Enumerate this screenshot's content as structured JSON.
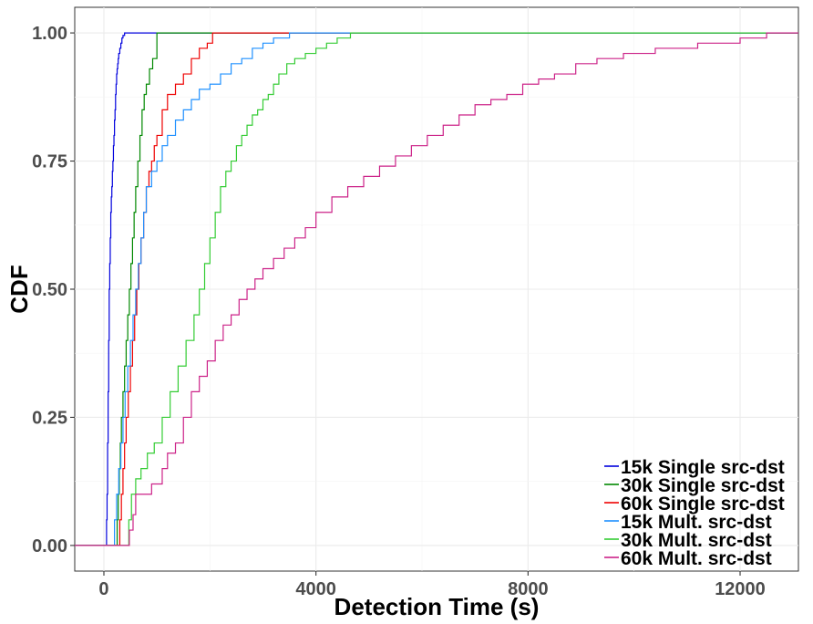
{
  "chart_data": {
    "type": "line",
    "step": true,
    "xlabel": "Detection Time (s)",
    "ylabel": "CDF",
    "xlim": [
      -550,
      13100
    ],
    "ylim": [
      -0.05,
      1.05
    ],
    "x_ticks": [
      0,
      4000,
      8000,
      12000
    ],
    "x_tick_labels": [
      "0",
      "4000",
      "8000",
      "12000"
    ],
    "y_ticks": [
      0,
      0.25,
      0.5,
      0.75,
      1.0
    ],
    "y_tick_labels": [
      "0.00",
      "0.25",
      "0.50",
      "0.75",
      "1.00"
    ],
    "grid": true,
    "legend_position": "bottom-right",
    "series": [
      {
        "name": "15k Single src-dst",
        "color": "#0000dd",
        "x": [
          -550,
          50,
          50,
          60,
          70,
          80,
          90,
          100,
          110,
          120,
          130,
          140,
          150,
          160,
          170,
          180,
          190,
          200,
          210,
          220,
          230,
          240,
          250,
          260,
          270,
          280,
          300,
          320,
          340,
          360,
          390,
          13100
        ],
        "y": [
          0,
          0,
          0.05,
          0.1,
          0.2,
          0.3,
          0.4,
          0.5,
          0.55,
          0.6,
          0.65,
          0.68,
          0.7,
          0.73,
          0.75,
          0.78,
          0.8,
          0.83,
          0.85,
          0.88,
          0.9,
          0.92,
          0.93,
          0.94,
          0.95,
          0.96,
          0.97,
          0.98,
          0.99,
          0.995,
          1.0,
          1.0
        ]
      },
      {
        "name": "30k Single src-dst",
        "color": "#008800",
        "x": [
          -550,
          250,
          250,
          270,
          290,
          310,
          330,
          360,
          390,
          420,
          450,
          480,
          510,
          540,
          570,
          600,
          640,
          680,
          720,
          760,
          800,
          860,
          920,
          1000,
          13100
        ],
        "y": [
          0,
          0,
          0.05,
          0.1,
          0.15,
          0.2,
          0.25,
          0.3,
          0.35,
          0.4,
          0.45,
          0.5,
          0.55,
          0.6,
          0.65,
          0.7,
          0.75,
          0.8,
          0.85,
          0.88,
          0.9,
          0.93,
          0.95,
          1.0,
          1.0
        ]
      },
      {
        "name": "60k Single src-dst",
        "color": "#ee0000",
        "x": [
          -550,
          300,
          300,
          330,
          360,
          390,
          420,
          460,
          500,
          540,
          580,
          620,
          660,
          700,
          750,
          800,
          850,
          900,
          950,
          1000,
          1100,
          1200,
          1350,
          1500,
          1650,
          1800,
          1950,
          2050,
          13100
        ],
        "y": [
          0,
          0,
          0.05,
          0.1,
          0.15,
          0.2,
          0.25,
          0.3,
          0.35,
          0.4,
          0.45,
          0.5,
          0.55,
          0.6,
          0.65,
          0.7,
          0.73,
          0.75,
          0.78,
          0.8,
          0.85,
          0.88,
          0.9,
          0.92,
          0.95,
          0.97,
          0.98,
          1.0,
          1.0
        ]
      },
      {
        "name": "15k Mult. src-dst",
        "color": "#1e90ff",
        "x": [
          -550,
          200,
          200,
          240,
          280,
          320,
          360,
          400,
          450,
          500,
          550,
          600,
          650,
          700,
          750,
          800,
          900,
          1000,
          1100,
          1200,
          1350,
          1500,
          1650,
          1800,
          2000,
          2200,
          2400,
          2600,
          2800,
          3000,
          3200,
          3500,
          13100
        ],
        "y": [
          0,
          0,
          0.05,
          0.1,
          0.15,
          0.2,
          0.25,
          0.3,
          0.35,
          0.4,
          0.45,
          0.5,
          0.55,
          0.6,
          0.65,
          0.7,
          0.73,
          0.75,
          0.78,
          0.8,
          0.83,
          0.85,
          0.87,
          0.89,
          0.9,
          0.92,
          0.94,
          0.95,
          0.97,
          0.98,
          0.99,
          1.0,
          1.0
        ]
      },
      {
        "name": "30k Mult. src-dst",
        "color": "#33cc33",
        "x": [
          -550,
          470,
          470,
          520,
          600,
          700,
          820,
          950,
          1100,
          1250,
          1400,
          1550,
          1700,
          1800,
          1900,
          2000,
          2100,
          2200,
          2300,
          2400,
          2500,
          2600,
          2700,
          2800,
          2900,
          3000,
          3100,
          3200,
          3300,
          3450,
          3600,
          3800,
          4000,
          4200,
          4400,
          4650,
          13100
        ],
        "y": [
          0,
          0,
          0.05,
          0.1,
          0.13,
          0.15,
          0.18,
          0.2,
          0.25,
          0.3,
          0.35,
          0.4,
          0.45,
          0.5,
          0.55,
          0.6,
          0.65,
          0.7,
          0.73,
          0.75,
          0.78,
          0.8,
          0.82,
          0.84,
          0.85,
          0.87,
          0.88,
          0.9,
          0.92,
          0.94,
          0.95,
          0.96,
          0.97,
          0.98,
          0.99,
          1.0,
          1.0
        ]
      },
      {
        "name": "60k Mult. src-dst",
        "color": "#cc2288",
        "x": [
          -550,
          480,
          480,
          550,
          600,
          900,
          1100,
          1200,
          1350,
          1500,
          1650,
          1800,
          1950,
          2100,
          2250,
          2400,
          2550,
          2700,
          2850,
          3000,
          3200,
          3400,
          3600,
          3800,
          4000,
          4300,
          4600,
          4900,
          5200,
          5500,
          5800,
          6100,
          6400,
          6700,
          7000,
          7300,
          7600,
          7900,
          8200,
          8500,
          8900,
          9300,
          9800,
          10400,
          11200,
          12000,
          12500,
          13100
        ],
        "y": [
          0,
          0,
          0.03,
          0.06,
          0.1,
          0.12,
          0.15,
          0.18,
          0.2,
          0.25,
          0.3,
          0.33,
          0.36,
          0.4,
          0.43,
          0.45,
          0.48,
          0.5,
          0.52,
          0.54,
          0.56,
          0.58,
          0.6,
          0.62,
          0.65,
          0.68,
          0.7,
          0.72,
          0.74,
          0.76,
          0.78,
          0.8,
          0.82,
          0.84,
          0.86,
          0.87,
          0.88,
          0.9,
          0.91,
          0.92,
          0.94,
          0.95,
          0.96,
          0.97,
          0.98,
          0.99,
          1.0,
          1.0
        ]
      }
    ]
  }
}
